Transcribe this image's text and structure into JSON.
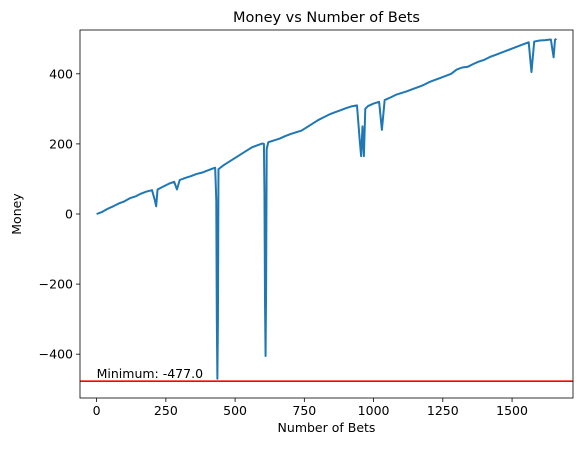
{
  "chart_data": {
    "type": "line",
    "title": "Money vs Number of Bets",
    "xlabel": "Number of Bets",
    "ylabel": "Money",
    "xlim": [
      -60,
      1720
    ],
    "ylim": [
      -525,
      525
    ],
    "xticks": [
      0,
      250,
      500,
      750,
      1000,
      1250,
      1500
    ],
    "yticks": [
      -400,
      -200,
      0,
      200,
      400
    ],
    "grid": false,
    "series": [
      {
        "color": "#1f77b4",
        "x": [
          0,
          20,
          40,
          60,
          80,
          100,
          120,
          140,
          160,
          180,
          200,
          210,
          215,
          220,
          240,
          260,
          280,
          290,
          300,
          320,
          340,
          360,
          380,
          400,
          420,
          428,
          432,
          434,
          436,
          438,
          440,
          460,
          480,
          500,
          520,
          540,
          560,
          580,
          598,
          604,
          606,
          608,
          610,
          612,
          614,
          620,
          640,
          660,
          680,
          700,
          720,
          740,
          760,
          780,
          800,
          820,
          840,
          860,
          880,
          900,
          920,
          940,
          950,
          955,
          960,
          965,
          970,
          980,
          1000,
          1020,
          1030,
          1040,
          1060,
          1080,
          1100,
          1120,
          1140,
          1160,
          1180,
          1200,
          1220,
          1240,
          1260,
          1280,
          1300,
          1320,
          1340,
          1360,
          1380,
          1400,
          1420,
          1440,
          1460,
          1480,
          1500,
          1520,
          1540,
          1560,
          1570,
          1580,
          1600,
          1620,
          1640,
          1650,
          1655,
          1660
        ],
        "y": [
          0,
          6,
          15,
          22,
          30,
          36,
          45,
          50,
          58,
          64,
          68,
          40,
          22,
          70,
          78,
          86,
          92,
          70,
          97,
          103,
          108,
          114,
          118,
          124,
          130,
          132,
          40,
          -300,
          -470,
          -300,
          128,
          140,
          150,
          160,
          170,
          180,
          190,
          196,
          201,
          200,
          60,
          -250,
          -405,
          -200,
          185,
          205,
          210,
          215,
          222,
          228,
          233,
          238,
          248,
          258,
          268,
          276,
          284,
          290,
          296,
          302,
          307,
          310,
          210,
          165,
          250,
          165,
          300,
          308,
          315,
          320,
          240,
          325,
          332,
          340,
          345,
          350,
          356,
          362,
          368,
          376,
          382,
          388,
          394,
          400,
          412,
          418,
          420,
          428,
          435,
          440,
          448,
          454,
          460,
          466,
          472,
          478,
          484,
          490,
          405,
          492,
          495,
          496,
          498,
          447,
          497,
          500
        ]
      }
    ],
    "hline": {
      "y": -477.0,
      "color": "#ff0000"
    },
    "annotation": {
      "text": "Minimum: -477.0",
      "x": 0,
      "y": -477.0
    }
  }
}
